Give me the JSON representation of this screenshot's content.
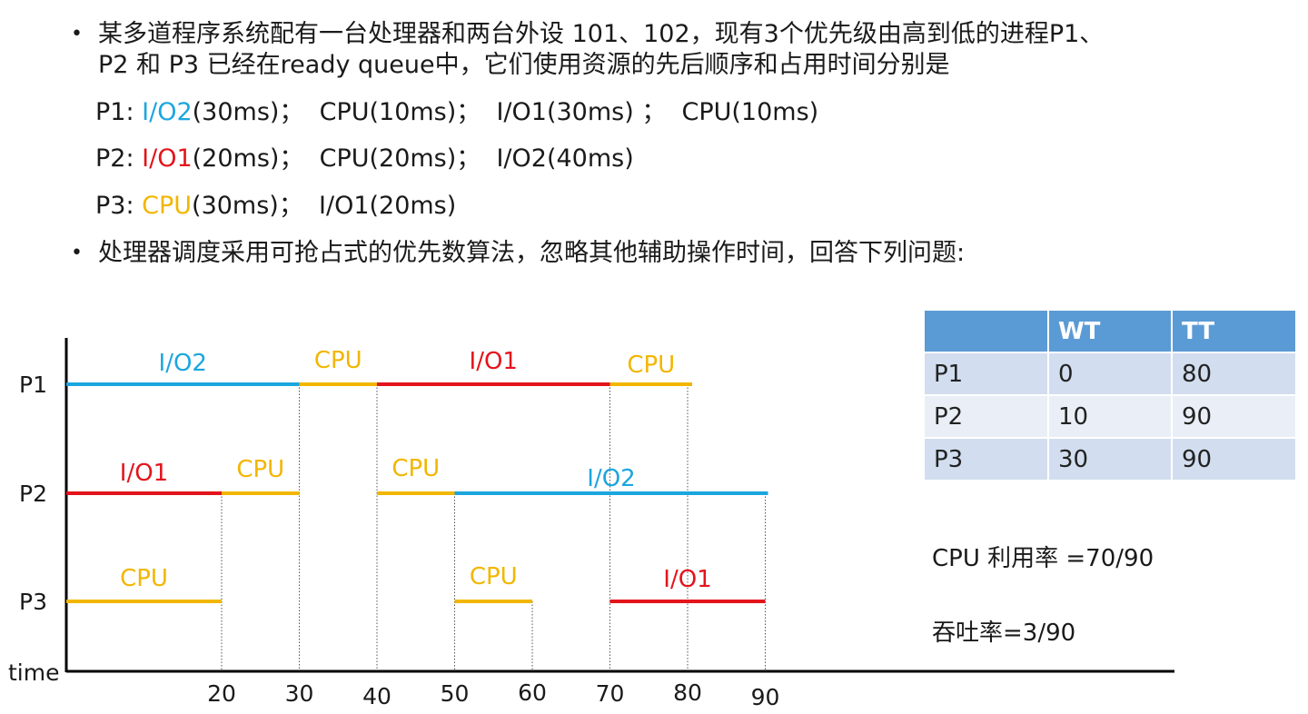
{
  "bullets": [
    {
      "lines": [
        "某多道程序系统配有一台处理器和两台外设 101、102，现有3个优先级由高到低的进程P1、",
        "P2 和 P3 已经在ready queue中，它们使用资源的先后顺序和占用时间分别是"
      ]
    },
    {
      "lines": [
        "处理器调度采用可抢占式的优先数算法，忽略其他辅助操作时间，回答下列问题:"
      ]
    }
  ],
  "processes_text": [
    {
      "prefix": "P1: ",
      "first": "I/O2",
      "first_color": "blue",
      "rest": "(30ms)；  CPU(10ms)；  I/O1(30ms) ；  CPU(10ms)"
    },
    {
      "prefix": "P2: ",
      "first": "I/O1",
      "first_color": "red",
      "rest": "(20ms)；  CPU(20ms)；  I/O2(40ms)"
    },
    {
      "prefix": "P3: ",
      "first": "CPU",
      "first_color": "yellow",
      "rest": "(30ms)；  I/O1(20ms)"
    }
  ],
  "colors": {
    "I/O2": "#1ca6de",
    "I/O1": "#e3141b",
    "CPU": "#f2b600",
    "axis": "#000000",
    "header": "#5b9bd5",
    "row_a": "#d2deef",
    "row_b": "#eaeff7"
  },
  "gantt": {
    "axis_label": "time",
    "ticks": [
      20,
      30,
      40,
      50,
      60,
      70,
      80,
      90
    ],
    "rows": [
      {
        "name": "P1",
        "segments": [
          {
            "label": "I/O2",
            "start": 0,
            "end": 30
          },
          {
            "label": "CPU",
            "start": 30,
            "end": 40
          },
          {
            "label": "I/O1",
            "start": 40,
            "end": 70
          },
          {
            "label": "CPU",
            "start": 70,
            "end": 80
          }
        ]
      },
      {
        "name": "P2",
        "segments": [
          {
            "label": "I/O1",
            "start": 0,
            "end": 20
          },
          {
            "label": "CPU",
            "start": 20,
            "end": 30
          },
          {
            "label": "CPU",
            "start": 40,
            "end": 50
          },
          {
            "label": "I/O2",
            "start": 50,
            "end": 90
          }
        ]
      },
      {
        "name": "P3",
        "segments": [
          {
            "label": "CPU",
            "start": 0,
            "end": 20
          },
          {
            "label": "CPU",
            "start": 50,
            "end": 60
          },
          {
            "label": "I/O1",
            "start": 70,
            "end": 90
          }
        ]
      }
    ]
  },
  "table": {
    "headers": [
      "",
      "WT",
      "TT"
    ],
    "rows": [
      [
        "P1",
        "0",
        "80"
      ],
      [
        "P2",
        "10",
        "90"
      ],
      [
        "P3",
        "30",
        "90"
      ]
    ]
  },
  "cpu_util": "CPU 利用率 =70/90",
  "throughput": "吞吐率=3/90"
}
